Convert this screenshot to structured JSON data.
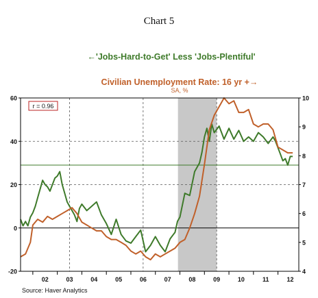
{
  "chart_data": {
    "type": "line",
    "title": "Chart 5",
    "legend": [
      {
        "text": "←'Jobs-Hard-to-Get' Less 'Jobs-Plentiful'",
        "color": "#3e7a2a",
        "axis": "left"
      },
      {
        "text": "Civilian Unemployment Rate: 16 yr +→",
        "color": "#c0602a",
        "axis": "right"
      }
    ],
    "right_subtitle": "SA, %",
    "annotation": "r = 0.96",
    "source": "Source: Haver Analytics",
    "x_ticks": [
      "02",
      "03",
      "04",
      "05",
      "06",
      "07",
      "08",
      "09",
      "10",
      "11",
      "12"
    ],
    "left_axis": {
      "min": -20,
      "max": 60,
      "ticks": [
        -20,
        0,
        20,
        40,
        60
      ]
    },
    "right_axis": {
      "min": 4,
      "max": 10,
      "ticks": [
        4,
        5,
        6,
        7,
        8,
        9,
        10
      ]
    },
    "recession": {
      "start": 2007.92,
      "end": 2009.5
    },
    "horizontal_line_left": 29,
    "series": [
      {
        "name": "'Jobs-Hard-to-Get' Less 'Jobs-Plentiful'",
        "axis": "left",
        "color": "#3e7a2a",
        "x": [
          2001.5,
          2001.6,
          2001.7,
          2001.8,
          2001.9,
          2002.0,
          2002.1,
          2002.2,
          2002.3,
          2002.4,
          2002.5,
          2002.6,
          2002.7,
          2002.8,
          2002.9,
          2003.0,
          2003.1,
          2003.2,
          2003.3,
          2003.4,
          2003.5,
          2003.6,
          2003.7,
          2003.8,
          2003.9,
          2004.0,
          2004.2,
          2004.4,
          2004.6,
          2004.8,
          2005.0,
          2005.2,
          2005.4,
          2005.6,
          2005.8,
          2006.0,
          2006.2,
          2006.4,
          2006.6,
          2006.8,
          2007.0,
          2007.2,
          2007.4,
          2007.6,
          2007.8,
          2007.9,
          2008.0,
          2008.2,
          2008.4,
          2008.6,
          2008.8,
          2008.9,
          2009.0,
          2009.1,
          2009.2,
          2009.3,
          2009.4,
          2009.6,
          2009.8,
          2010.0,
          2010.2,
          2010.4,
          2010.6,
          2010.8,
          2011.0,
          2011.2,
          2011.4,
          2011.6,
          2011.8,
          2011.9,
          2012.0,
          2012.1,
          2012.2,
          2012.3,
          2012.4,
          2012.5,
          2012.6
        ],
        "values": [
          4,
          1,
          3,
          1,
          5,
          7,
          10,
          14,
          18,
          22,
          20,
          19,
          17,
          20,
          23,
          24,
          26,
          20,
          16,
          12,
          10,
          8,
          6,
          3,
          9,
          11,
          8,
          10,
          12,
          6,
          2,
          -3,
          4,
          -3,
          -6,
          -7,
          -4,
          -1,
          -11,
          -8,
          -4,
          -8,
          -11,
          -5,
          -2,
          3,
          5,
          16,
          15,
          26,
          30,
          35,
          42,
          46,
          40,
          48,
          44,
          47,
          41,
          46,
          41,
          45,
          40,
          42,
          40,
          44,
          42,
          39,
          42,
          40,
          37,
          34,
          31,
          32,
          29,
          33,
          33
        ]
      },
      {
        "name": "Civilian Unemployment Rate: 16 yr +",
        "axis": "right",
        "color": "#c0602a",
        "x": [
          2001.5,
          2001.7,
          2001.9,
          2002.0,
          2002.2,
          2002.4,
          2002.6,
          2002.8,
          2003.0,
          2003.2,
          2003.4,
          2003.6,
          2003.8,
          2004.0,
          2004.2,
          2004.4,
          2004.6,
          2004.8,
          2005.0,
          2005.2,
          2005.4,
          2005.6,
          2005.8,
          2006.0,
          2006.2,
          2006.4,
          2006.6,
          2006.8,
          2007.0,
          2007.2,
          2007.4,
          2007.6,
          2007.8,
          2008.0,
          2008.2,
          2008.4,
          2008.6,
          2008.8,
          2009.0,
          2009.2,
          2009.4,
          2009.6,
          2009.8,
          2010.0,
          2010.2,
          2010.4,
          2010.6,
          2010.8,
          2011.0,
          2011.2,
          2011.4,
          2011.6,
          2011.8,
          2012.0,
          2012.2,
          2012.4,
          2012.6
        ],
        "values": [
          4.5,
          4.6,
          5.0,
          5.6,
          5.8,
          5.7,
          5.9,
          5.8,
          5.9,
          6.0,
          6.1,
          6.2,
          6.0,
          5.7,
          5.6,
          5.5,
          5.4,
          5.4,
          5.2,
          5.1,
          5.1,
          5.0,
          4.9,
          4.7,
          4.6,
          4.7,
          4.5,
          4.4,
          4.6,
          4.5,
          4.6,
          4.7,
          4.8,
          5.0,
          5.1,
          5.5,
          6.0,
          6.6,
          7.7,
          8.9,
          9.4,
          9.7,
          10.0,
          9.8,
          9.9,
          9.5,
          9.5,
          9.6,
          9.1,
          9.0,
          9.1,
          9.1,
          8.9,
          8.3,
          8.2,
          8.1,
          8.1
        ]
      }
    ],
    "grid": "dashed vertical and horizontal at left-axis ticks"
  }
}
